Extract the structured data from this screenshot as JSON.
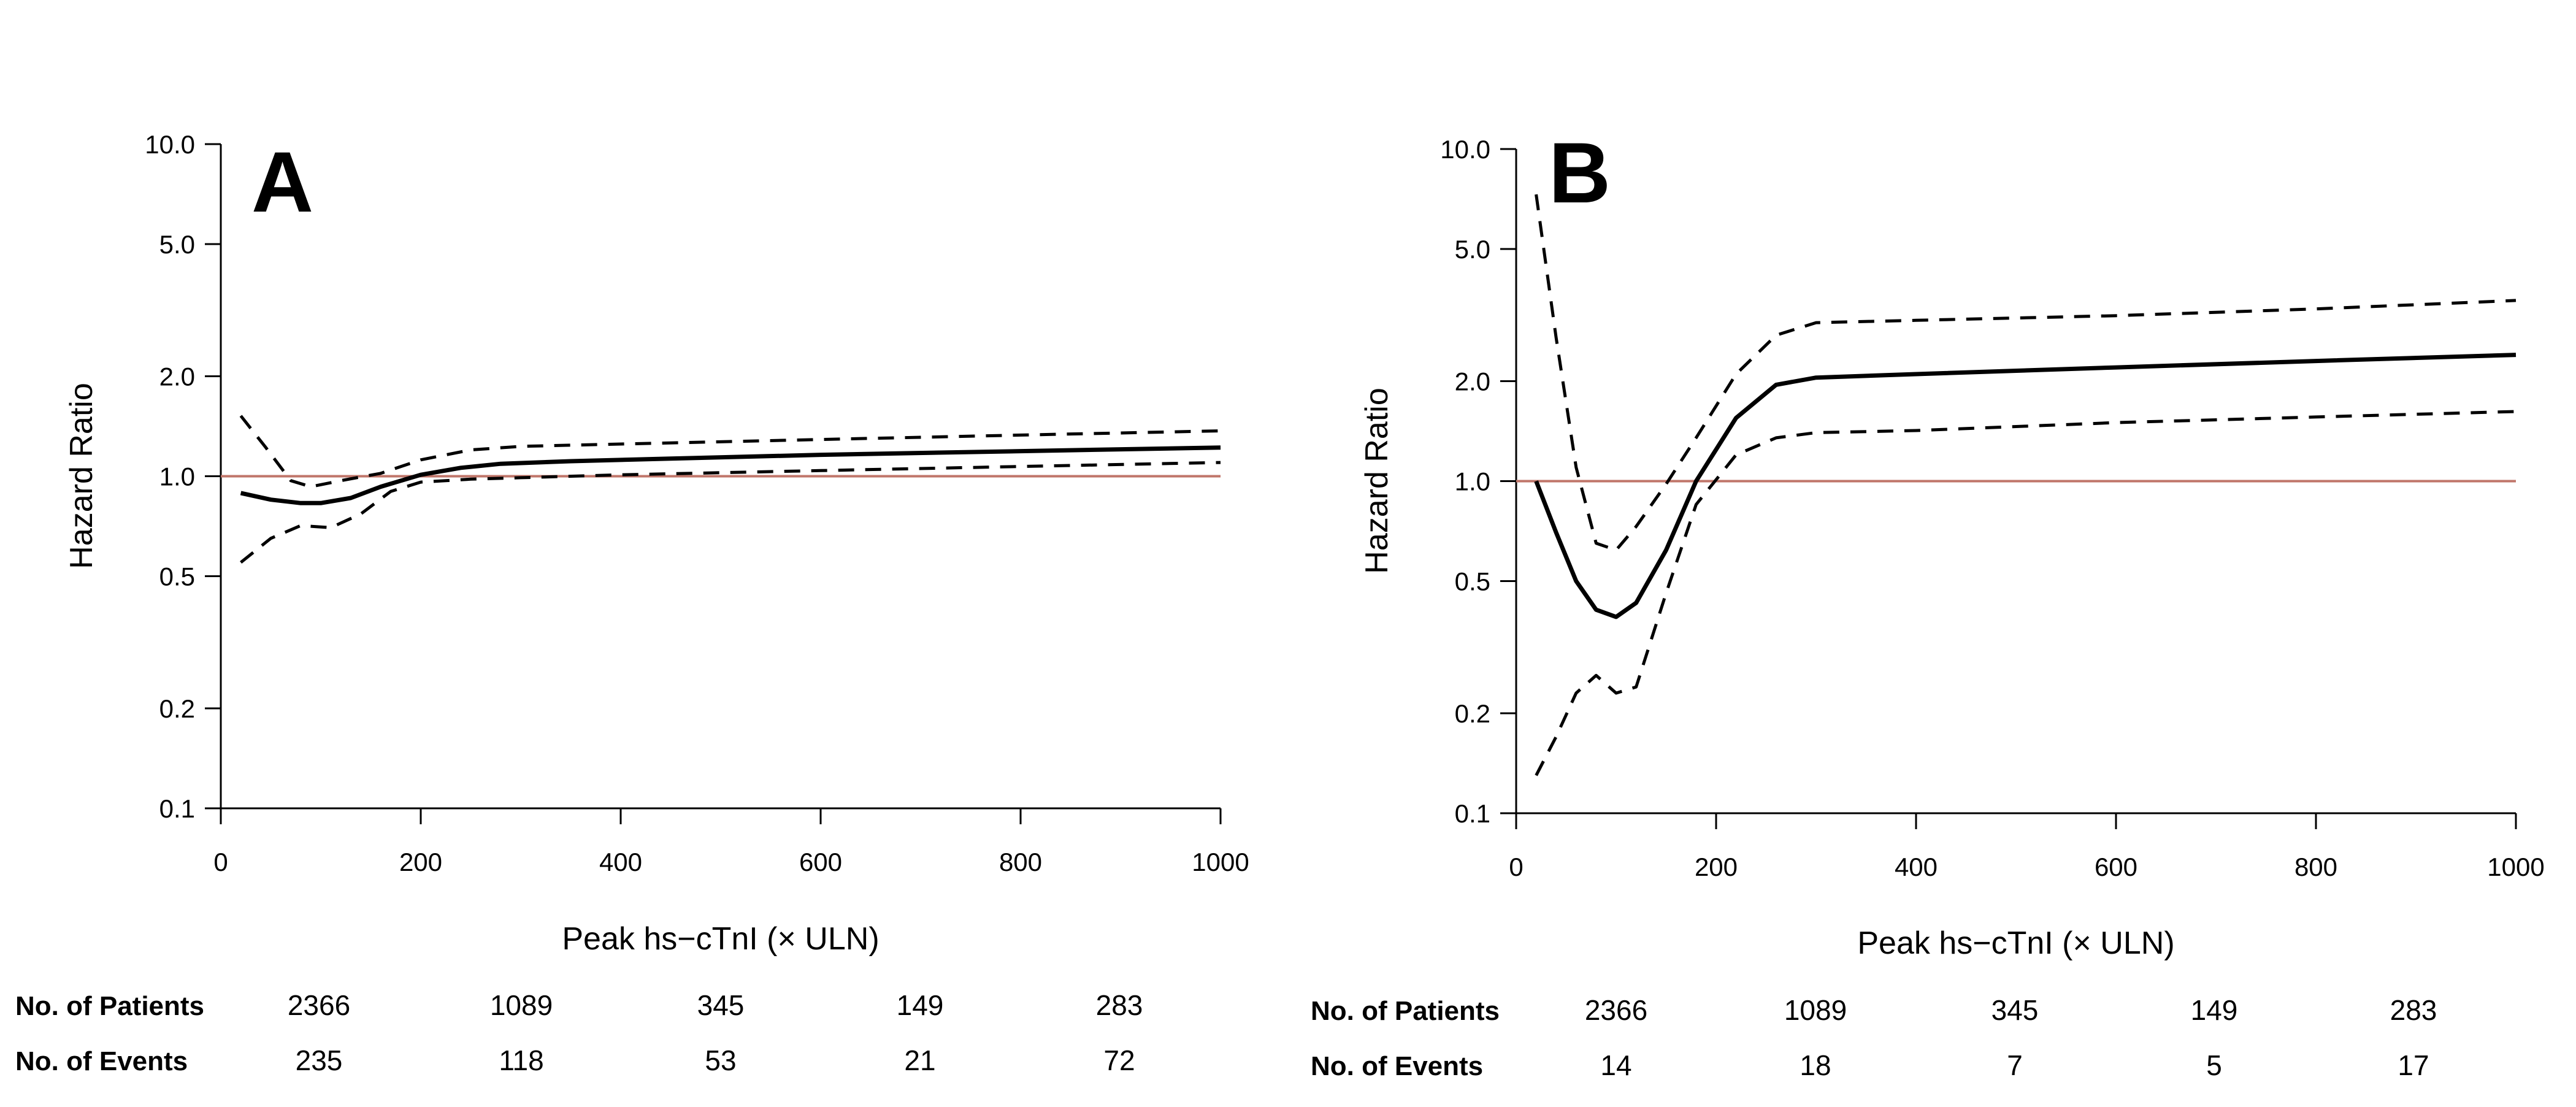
{
  "chart_data": [
    {
      "panel": "A",
      "type": "line",
      "x_scale": "linear",
      "y_scale": "log",
      "xlabel": "Peak hs−cTnI (× ULN)",
      "ylabel": "Hazard Ratio",
      "xlim": [
        0,
        1000
      ],
      "ylim": [
        0.1,
        10
      ],
      "x_ticks": [
        "0",
        "200",
        "400",
        "600",
        "800",
        "1000"
      ],
      "y_ticks": [
        "10.0",
        "5.0",
        "2.0",
        "1.0",
        "0.5",
        "0.2",
        "0.1"
      ],
      "reference_line": {
        "y": 1.0,
        "color": "#c0766a"
      },
      "series": [
        {
          "style": "solid",
          "x": [
            20,
            50,
            80,
            100,
            130,
            160,
            200,
            240,
            280,
            350,
            450,
            600,
            800,
            1000
          ],
          "y": [
            0.89,
            0.85,
            0.83,
            0.83,
            0.86,
            0.93,
            1.01,
            1.06,
            1.09,
            1.11,
            1.13,
            1.16,
            1.19,
            1.22
          ]
        },
        {
          "style": "dashed",
          "x": [
            20,
            45,
            70,
            90,
            120,
            160,
            200,
            250,
            300,
            400,
            600,
            800,
            1000
          ],
          "y": [
            1.52,
            1.22,
            0.97,
            0.93,
            0.97,
            1.02,
            1.12,
            1.2,
            1.23,
            1.25,
            1.29,
            1.33,
            1.37
          ]
        },
        {
          "style": "dashed",
          "x": [
            20,
            50,
            80,
            110,
            140,
            170,
            200,
            250,
            300,
            400,
            600,
            800,
            1000
          ],
          "y": [
            0.55,
            0.65,
            0.71,
            0.7,
            0.77,
            0.9,
            0.96,
            0.98,
            0.99,
            1.01,
            1.04,
            1.07,
            1.1
          ]
        }
      ],
      "table": {
        "patients_label": "No. of Patients",
        "events_label": "No. of Events",
        "patients": [
          "2366",
          "1089",
          "345",
          "149",
          "283"
        ],
        "events": [
          "235",
          "118",
          "53",
          "21",
          "72"
        ]
      }
    },
    {
      "panel": "B",
      "type": "line",
      "x_scale": "linear",
      "y_scale": "log",
      "xlabel": "Peak hs−cTnI (× ULN)",
      "ylabel": "Hazard Ratio",
      "xlim": [
        0,
        1000
      ],
      "ylim": [
        0.1,
        10
      ],
      "x_ticks": [
        "0",
        "200",
        "400",
        "600",
        "800",
        "1000"
      ],
      "y_ticks": [
        "10.0",
        "5.0",
        "2.0",
        "1.0",
        "0.5",
        "0.2",
        "0.1"
      ],
      "reference_line": {
        "y": 1.0,
        "color": "#c0766a"
      },
      "series": [
        {
          "style": "solid",
          "x": [
            20,
            40,
            60,
            80,
            100,
            120,
            150,
            180,
            220,
            260,
            300,
            400,
            600,
            800,
            1000
          ],
          "y": [
            1.0,
            0.7,
            0.5,
            0.41,
            0.39,
            0.43,
            0.62,
            1.0,
            1.55,
            1.95,
            2.05,
            2.1,
            2.2,
            2.3,
            2.4
          ]
        },
        {
          "style": "dashed",
          "x": [
            20,
            40,
            60,
            80,
            100,
            120,
            150,
            180,
            220,
            260,
            300,
            400,
            600,
            800,
            1000
          ],
          "y": [
            7.3,
            2.7,
            1.1,
            0.65,
            0.62,
            0.73,
            0.98,
            1.35,
            2.1,
            2.75,
            3.0,
            3.05,
            3.15,
            3.3,
            3.5
          ]
        },
        {
          "style": "dashed",
          "x": [
            20,
            40,
            60,
            80,
            100,
            120,
            150,
            180,
            220,
            260,
            300,
            400,
            600,
            800,
            1000
          ],
          "y": [
            0.13,
            0.17,
            0.23,
            0.26,
            0.23,
            0.24,
            0.46,
            0.85,
            1.2,
            1.35,
            1.4,
            1.42,
            1.5,
            1.56,
            1.62
          ]
        }
      ],
      "table": {
        "patients_label": "No. of Patients",
        "events_label": "No. of Events",
        "patients": [
          "2366",
          "1089",
          "345",
          "149",
          "283"
        ],
        "events": [
          "14",
          "18",
          "7",
          "5",
          "17"
        ]
      }
    }
  ]
}
